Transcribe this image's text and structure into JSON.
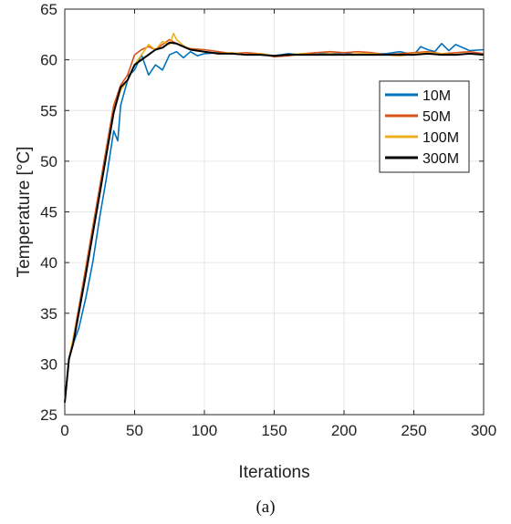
{
  "chart_data": {
    "type": "line",
    "title": "",
    "xlabel": "Iterations",
    "ylabel": "Temperature [°C]",
    "caption": "(a)",
    "xlim": [
      0,
      300
    ],
    "ylim": [
      25,
      65
    ],
    "xticks": [
      0,
      50,
      100,
      150,
      200,
      250,
      300
    ],
    "yticks": [
      25,
      30,
      35,
      40,
      45,
      50,
      55,
      60,
      65
    ],
    "grid": true,
    "legend_position": "top-right",
    "series": [
      {
        "name": "10M",
        "color": "#0072BD",
        "x": [
          0,
          3,
          6,
          10,
          15,
          20,
          25,
          30,
          35,
          38,
          40,
          43,
          46,
          50,
          55,
          60,
          65,
          70,
          75,
          80,
          85,
          90,
          95,
          100,
          110,
          120,
          130,
          140,
          150,
          160,
          170,
          180,
          190,
          200,
          210,
          220,
          230,
          240,
          250,
          255,
          260,
          265,
          270,
          275,
          280,
          290,
          300
        ],
        "y": [
          26.2,
          30.5,
          32.0,
          33.5,
          36.5,
          40.0,
          44.5,
          48.5,
          53.0,
          52.0,
          55.5,
          57.0,
          58.5,
          59.0,
          60.5,
          58.5,
          59.5,
          59.0,
          60.5,
          60.8,
          60.2,
          60.8,
          60.4,
          60.6,
          60.7,
          60.6,
          60.5,
          60.6,
          60.4,
          60.6,
          60.5,
          60.7,
          60.6,
          60.7,
          60.5,
          60.6,
          60.6,
          60.8,
          60.5,
          61.3,
          61.0,
          60.8,
          61.6,
          60.9,
          61.5,
          60.9,
          61.0
        ]
      },
      {
        "name": "50M",
        "color": "#D95319",
        "x": [
          0,
          3,
          6,
          10,
          15,
          20,
          25,
          30,
          35,
          40,
          45,
          50,
          55,
          60,
          65,
          70,
          75,
          80,
          85,
          90,
          100,
          110,
          120,
          130,
          140,
          150,
          160,
          170,
          180,
          190,
          200,
          210,
          220,
          230,
          240,
          250,
          260,
          270,
          280,
          290,
          300
        ],
        "y": [
          26.2,
          30.5,
          32.5,
          35.5,
          39.5,
          43.5,
          47.5,
          51.5,
          55.5,
          57.5,
          58.5,
          60.5,
          61.0,
          61.3,
          61.0,
          61.5,
          62.0,
          61.6,
          61.3,
          61.1,
          61.0,
          60.8,
          60.6,
          60.7,
          60.6,
          60.3,
          60.4,
          60.6,
          60.7,
          60.8,
          60.7,
          60.8,
          60.7,
          60.5,
          60.6,
          60.7,
          60.8,
          60.6,
          60.7,
          60.8,
          60.6
        ]
      },
      {
        "name": "100M",
        "color": "#EDB120",
        "x": [
          0,
          3,
          6,
          10,
          15,
          20,
          25,
          30,
          35,
          40,
          45,
          50,
          55,
          60,
          65,
          70,
          75,
          78,
          80,
          85,
          90,
          100,
          110,
          120,
          130,
          140,
          150,
          160,
          170,
          180,
          190,
          200,
          210,
          220,
          230,
          240,
          250,
          260,
          270,
          280,
          290,
          300
        ],
        "y": [
          26.2,
          30.5,
          32.5,
          35.0,
          39.0,
          43.0,
          47.0,
          51.0,
          55.0,
          57.0,
          58.0,
          59.5,
          60.5,
          61.5,
          61.0,
          61.8,
          61.5,
          62.6,
          62.0,
          61.4,
          61.0,
          60.8,
          60.6,
          60.7,
          60.5,
          60.6,
          60.4,
          60.5,
          60.6,
          60.5,
          60.6,
          60.5,
          60.6,
          60.6,
          60.5,
          60.4,
          60.6,
          60.7,
          60.6,
          60.5,
          60.6,
          60.5
        ]
      },
      {
        "name": "300M",
        "color": "#000000",
        "x": [
          0,
          3,
          6,
          10,
          15,
          20,
          25,
          30,
          35,
          40,
          45,
          50,
          55,
          60,
          65,
          70,
          75,
          80,
          85,
          90,
          95,
          100,
          110,
          120,
          130,
          140,
          150,
          160,
          170,
          180,
          190,
          200,
          210,
          220,
          230,
          240,
          250,
          260,
          270,
          280,
          290,
          300
        ],
        "y": [
          26.2,
          30.5,
          32.0,
          35.0,
          38.8,
          42.8,
          46.8,
          50.8,
          54.8,
          57.3,
          58.0,
          59.5,
          60.0,
          60.5,
          61.0,
          61.2,
          61.7,
          61.6,
          61.3,
          61.0,
          60.9,
          60.8,
          60.6,
          60.6,
          60.5,
          60.5,
          60.4,
          60.5,
          60.5,
          60.5,
          60.5,
          60.5,
          60.5,
          60.5,
          60.5,
          60.5,
          60.5,
          60.6,
          60.5,
          60.5,
          60.6,
          60.5
        ]
      }
    ]
  }
}
